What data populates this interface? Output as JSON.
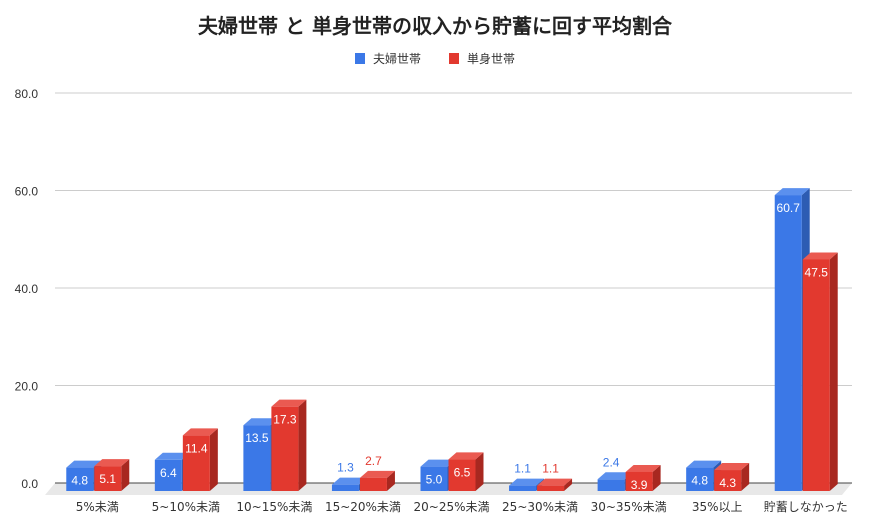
{
  "chart_data": {
    "type": "bar",
    "title": "夫婦世帯 と 単身世帯の収入から貯蓄に回す平均割合",
    "xlabel": "",
    "ylabel": "",
    "ylim": [
      0,
      80
    ],
    "yticks": [
      "0.0",
      "20.0",
      "40.0",
      "60.0",
      "80.0"
    ],
    "grid": true,
    "legend_position": "top",
    "categories": [
      "5%未満",
      "5~10%未満",
      "10~15%未満",
      "15~20%未満",
      "20~25%未満",
      "25~30%未満",
      "30~35%未満",
      "35%以上",
      "貯蓄しなかった"
    ],
    "series": [
      {
        "name": "夫婦世帯",
        "color": "#3b78e7",
        "values": [
          4.8,
          6.4,
          13.5,
          1.3,
          5.0,
          1.1,
          2.4,
          4.8,
          60.7
        ]
      },
      {
        "name": "単身世帯",
        "color": "#e2392f",
        "values": [
          5.1,
          11.4,
          17.3,
          2.7,
          6.5,
          1.1,
          3.9,
          4.3,
          47.5
        ]
      }
    ]
  }
}
